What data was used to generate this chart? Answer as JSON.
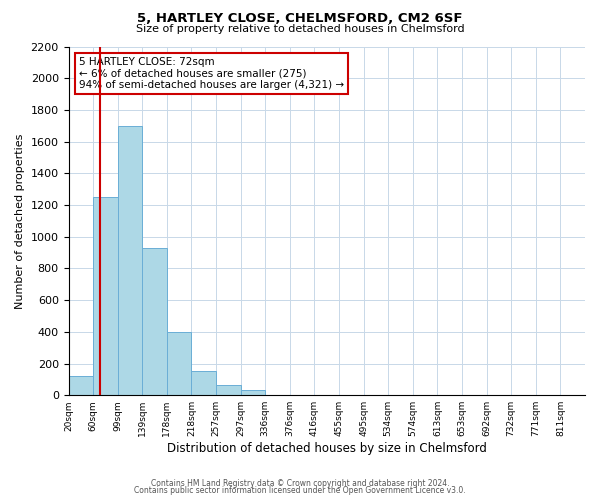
{
  "title1": "5, HARTLEY CLOSE, CHELMSFORD, CM2 6SF",
  "title2": "Size of property relative to detached houses in Chelmsford",
  "xlabel": "Distribution of detached houses by size in Chelmsford",
  "ylabel": "Number of detached properties",
  "footnote1": "Contains HM Land Registry data © Crown copyright and database right 2024.",
  "footnote2": "Contains public sector information licensed under the Open Government Licence v3.0.",
  "bin_labels": [
    "20sqm",
    "60sqm",
    "99sqm",
    "139sqm",
    "178sqm",
    "218sqm",
    "257sqm",
    "297sqm",
    "336sqm",
    "376sqm",
    "416sqm",
    "455sqm",
    "495sqm",
    "534sqm",
    "574sqm",
    "613sqm",
    "653sqm",
    "692sqm",
    "732sqm",
    "771sqm",
    "811sqm"
  ],
  "bar_values": [
    120,
    1250,
    1700,
    930,
    400,
    150,
    65,
    30,
    0,
    0,
    0,
    0,
    0,
    0,
    0,
    0,
    0,
    0,
    0,
    0,
    0
  ],
  "vline_bin_index": 1.3,
  "bar_color": "#add8e6",
  "bar_edge_color": "#6aaed6",
  "vline_color": "#cc0000",
  "annotation_title": "5 HARTLEY CLOSE: 72sqm",
  "annotation_line1": "← 6% of detached houses are smaller (275)",
  "annotation_line2": "94% of semi-detached houses are larger (4,321) →",
  "annotation_box_edge": "#cc0000",
  "ylim": [
    0,
    2200
  ],
  "yticks": [
    0,
    200,
    400,
    600,
    800,
    1000,
    1200,
    1400,
    1600,
    1800,
    2000,
    2200
  ],
  "grid_color": "#c8d8e8",
  "background_color": "#ffffff"
}
